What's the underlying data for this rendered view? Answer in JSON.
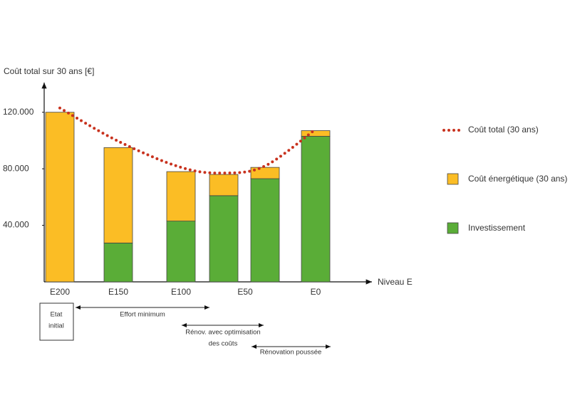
{
  "chart_data": {
    "type": "bar",
    "stacked": true,
    "y_label": "Coût total sur 30 ans [€]",
    "x_label": "Niveau E",
    "categories": [
      "E200",
      "E150",
      "E100",
      "E50",
      null,
      "E0"
    ],
    "series": [
      {
        "name": "Investissement",
        "type": "bar",
        "color": "#5aad37",
        "values": [
          0,
          27500,
          43000,
          61000,
          73000,
          103000
        ]
      },
      {
        "name": "Coût énergétique (30 ans)",
        "type": "bar",
        "color": "#fbbd25",
        "values": [
          120000,
          67500,
          35000,
          15000,
          8000,
          4000
        ]
      },
      {
        "name": "Coût total (30 ans)",
        "type": "line",
        "color": "#c8321e",
        "values": [
          123000,
          99500,
          81000,
          77000,
          82000,
          108000
        ]
      }
    ],
    "ylim": [
      0,
      140000
    ],
    "yticks": [
      {
        "value": 40000,
        "label": "40.000"
      },
      {
        "value": 80000,
        "label": "80.000"
      },
      {
        "value": 120000,
        "label": "120.000"
      }
    ],
    "legend": "right",
    "annotations": {
      "etat": [
        "Etat",
        "initial"
      ],
      "effort": "Effort minimum",
      "renov_opt": [
        "Rénov. avec optimisation",
        "des coûts"
      ],
      "renov_poussee": "Rénovation poussée"
    }
  }
}
